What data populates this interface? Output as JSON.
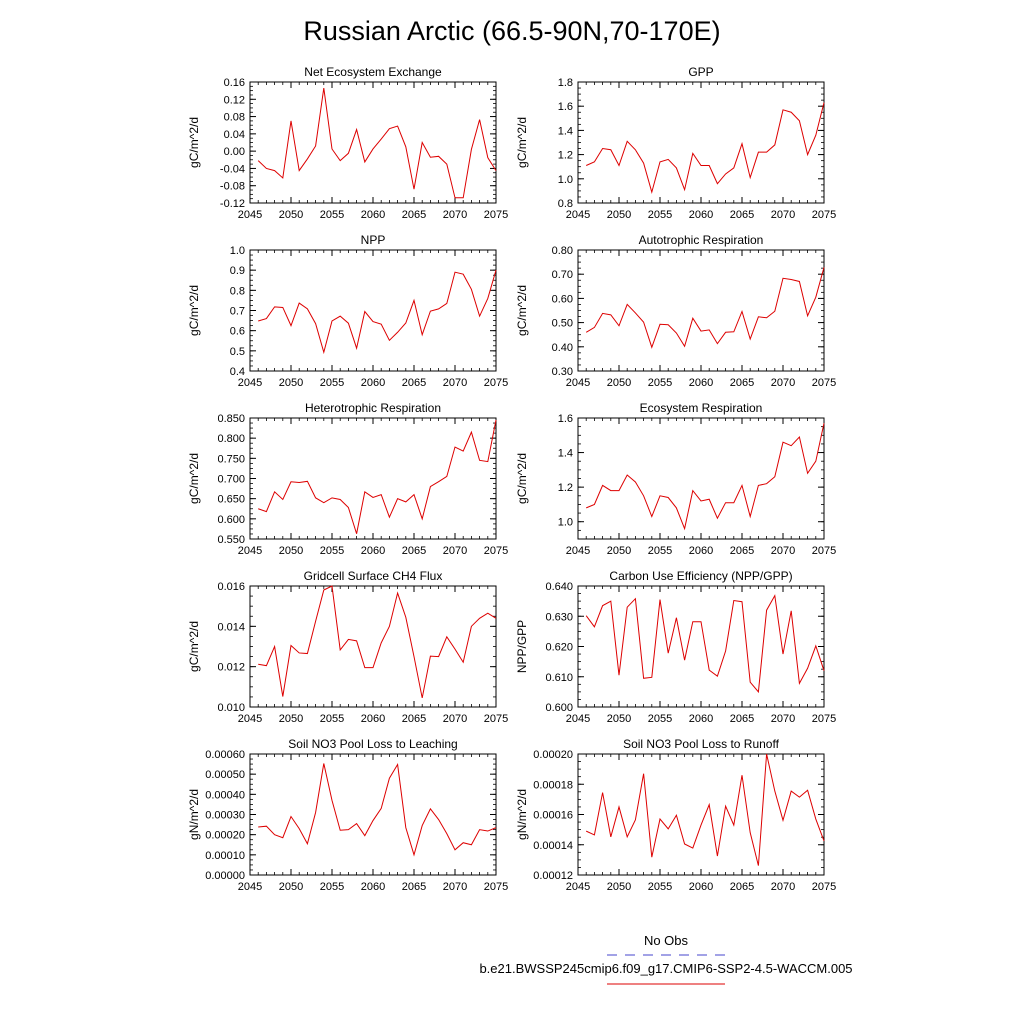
{
  "figure_title": "Russian Arctic (66.5-90N,70-170E)",
  "legend": {
    "obs_label": "No Obs",
    "obs_color": "#4444cc",
    "model_label": "b.e21.BWSSP245cmip6.f09_g17.CMIP6-SSP2-4.5-WACCM.005",
    "model_color": "#dd0000"
  },
  "chart_data": [
    {
      "type": "line",
      "title": "Net Ecosystem Exchange",
      "xlabel": "",
      "ylabel": "gC/m^2/d",
      "xlim": [
        2045,
        2075
      ],
      "ylim": [
        -0.12,
        0.16
      ],
      "xticks": [
        2045,
        2050,
        2055,
        2060,
        2065,
        2070,
        2075
      ],
      "yticks": [
        -0.12,
        -0.08,
        -0.04,
        0.0,
        0.04,
        0.08,
        0.12,
        0.16
      ],
      "ytick_labels": [
        "-0.12",
        "-0.08",
        "-0.04",
        "0.00",
        "0.04",
        "0.08",
        "0.12",
        "0.16"
      ],
      "x": [
        2046,
        2047,
        2048,
        2049,
        2050,
        2051,
        2052,
        2053,
        2054,
        2055,
        2056,
        2057,
        2058,
        2059,
        2060,
        2061,
        2062,
        2063,
        2064,
        2065,
        2066,
        2067,
        2068,
        2069,
        2070,
        2071,
        2072,
        2073,
        2074,
        2075
      ],
      "values": [
        -0.022,
        -0.04,
        -0.045,
        -0.062,
        0.07,
        -0.045,
        -0.018,
        0.012,
        0.146,
        0.005,
        -0.022,
        -0.005,
        0.05,
        -0.025,
        0.005,
        0.028,
        0.052,
        0.058,
        0.01,
        -0.088,
        0.02,
        -0.014,
        -0.012,
        -0.03,
        -0.108,
        -0.108,
        0.004,
        0.073,
        -0.015,
        -0.045
      ]
    },
    {
      "type": "line",
      "title": "GPP",
      "xlabel": "",
      "ylabel": "gC/m^2/d",
      "xlim": [
        2045,
        2075
      ],
      "ylim": [
        0.8,
        1.8
      ],
      "xticks": [
        2045,
        2050,
        2055,
        2060,
        2065,
        2070,
        2075
      ],
      "yticks": [
        0.8,
        1.0,
        1.2,
        1.4,
        1.6,
        1.8
      ],
      "ytick_labels": [
        "0.8",
        "1.0",
        "1.2",
        "1.4",
        "1.6",
        "1.8"
      ],
      "x": [
        2046,
        2047,
        2048,
        2049,
        2050,
        2051,
        2052,
        2053,
        2054,
        2055,
        2056,
        2057,
        2058,
        2059,
        2060,
        2061,
        2062,
        2063,
        2064,
        2065,
        2066,
        2067,
        2068,
        2069,
        2070,
        2071,
        2072,
        2073,
        2074,
        2075
      ],
      "values": [
        1.11,
        1.14,
        1.25,
        1.24,
        1.11,
        1.31,
        1.24,
        1.13,
        0.89,
        1.14,
        1.16,
        1.09,
        0.91,
        1.21,
        1.11,
        1.11,
        0.96,
        1.04,
        1.09,
        1.29,
        1.01,
        1.22,
        1.22,
        1.28,
        1.57,
        1.55,
        1.48,
        1.2,
        1.36,
        1.63
      ]
    },
    {
      "type": "line",
      "title": "NPP",
      "xlabel": "",
      "ylabel": "gC/m^2/d",
      "xlim": [
        2045,
        2075
      ],
      "ylim": [
        0.4,
        1.0
      ],
      "xticks": [
        2045,
        2050,
        2055,
        2060,
        2065,
        2070,
        2075
      ],
      "yticks": [
        0.4,
        0.5,
        0.6,
        0.7,
        0.8,
        0.9,
        1.0
      ],
      "ytick_labels": [
        "0.4",
        "0.5",
        "0.6",
        "0.7",
        "0.8",
        "0.9",
        "1.0"
      ],
      "x": [
        2046,
        2047,
        2048,
        2049,
        2050,
        2051,
        2052,
        2053,
        2054,
        2055,
        2056,
        2057,
        2058,
        2059,
        2060,
        2061,
        2062,
        2063,
        2064,
        2065,
        2066,
        2067,
        2068,
        2069,
        2070,
        2071,
        2072,
        2073,
        2074,
        2075
      ],
      "values": [
        0.648,
        0.66,
        0.718,
        0.715,
        0.625,
        0.737,
        0.708,
        0.635,
        0.493,
        0.648,
        0.672,
        0.637,
        0.513,
        0.695,
        0.645,
        0.632,
        0.552,
        0.592,
        0.638,
        0.75,
        0.58,
        0.697,
        0.708,
        0.735,
        0.89,
        0.88,
        0.805,
        0.672,
        0.76,
        0.9
      ]
    },
    {
      "type": "line",
      "title": "Autotrophic Respiration",
      "xlabel": "",
      "ylabel": "gC/m^2/d",
      "xlim": [
        2045,
        2075
      ],
      "ylim": [
        0.3,
        0.8
      ],
      "xticks": [
        2045,
        2050,
        2055,
        2060,
        2065,
        2070,
        2075
      ],
      "yticks": [
        0.3,
        0.4,
        0.5,
        0.6,
        0.7,
        0.8
      ],
      "ytick_labels": [
        "0.30",
        "0.40",
        "0.50",
        "0.60",
        "0.70",
        "0.80"
      ],
      "x": [
        2046,
        2047,
        2048,
        2049,
        2050,
        2051,
        2052,
        2053,
        2054,
        2055,
        2056,
        2057,
        2058,
        2059,
        2060,
        2061,
        2062,
        2063,
        2064,
        2065,
        2066,
        2067,
        2068,
        2069,
        2070,
        2071,
        2072,
        2073,
        2074,
        2075
      ],
      "values": [
        0.46,
        0.48,
        0.538,
        0.532,
        0.487,
        0.575,
        0.54,
        0.502,
        0.398,
        0.493,
        0.491,
        0.457,
        0.402,
        0.518,
        0.465,
        0.47,
        0.413,
        0.46,
        0.462,
        0.546,
        0.432,
        0.524,
        0.52,
        0.547,
        0.683,
        0.678,
        0.67,
        0.528,
        0.605,
        0.728
      ]
    },
    {
      "type": "line",
      "title": "Heterotrophic Respiration",
      "xlabel": "",
      "ylabel": "gC/m^2/d",
      "xlim": [
        2045,
        2075
      ],
      "ylim": [
        0.55,
        0.85
      ],
      "xticks": [
        2045,
        2050,
        2055,
        2060,
        2065,
        2070,
        2075
      ],
      "yticks": [
        0.55,
        0.6,
        0.65,
        0.7,
        0.75,
        0.8,
        0.85
      ],
      "ytick_labels": [
        "0.550",
        "0.600",
        "0.650",
        "0.700",
        "0.750",
        "0.800",
        "0.850"
      ],
      "x": [
        2046,
        2047,
        2048,
        2049,
        2050,
        2051,
        2052,
        2053,
        2054,
        2055,
        2056,
        2057,
        2058,
        2059,
        2060,
        2061,
        2062,
        2063,
        2064,
        2065,
        2066,
        2067,
        2068,
        2069,
        2070,
        2071,
        2072,
        2073,
        2074,
        2075
      ],
      "values": [
        0.625,
        0.618,
        0.667,
        0.648,
        0.692,
        0.69,
        0.693,
        0.652,
        0.64,
        0.652,
        0.648,
        0.628,
        0.563,
        0.667,
        0.653,
        0.66,
        0.604,
        0.65,
        0.642,
        0.66,
        0.6,
        0.68,
        0.692,
        0.705,
        0.778,
        0.768,
        0.815,
        0.745,
        0.742,
        0.845
      ]
    },
    {
      "type": "line",
      "title": "Ecosystem Respiration",
      "xlabel": "",
      "ylabel": "gC/m^2/d",
      "xlim": [
        2045,
        2075
      ],
      "ylim": [
        0.9,
        1.6
      ],
      "xticks": [
        2045,
        2050,
        2055,
        2060,
        2065,
        2070,
        2075
      ],
      "yticks": [
        1.0,
        1.2,
        1.4,
        1.6
      ],
      "ytick_labels": [
        "1.0",
        "1.2",
        "1.4",
        "1.6"
      ],
      "x": [
        2046,
        2047,
        2048,
        2049,
        2050,
        2051,
        2052,
        2053,
        2054,
        2055,
        2056,
        2057,
        2058,
        2059,
        2060,
        2061,
        2062,
        2063,
        2064,
        2065,
        2066,
        2067,
        2068,
        2069,
        2070,
        2071,
        2072,
        2073,
        2074,
        2075
      ],
      "values": [
        1.08,
        1.1,
        1.21,
        1.18,
        1.18,
        1.27,
        1.23,
        1.15,
        1.03,
        1.15,
        1.14,
        1.08,
        0.96,
        1.18,
        1.12,
        1.13,
        1.02,
        1.11,
        1.11,
        1.21,
        1.03,
        1.21,
        1.22,
        1.26,
        1.46,
        1.44,
        1.49,
        1.28,
        1.35,
        1.57
      ]
    },
    {
      "type": "line",
      "title": "Gridcell Surface CH4 Flux",
      "xlabel": "",
      "ylabel": "gC/m^2/d",
      "xlim": [
        2045,
        2075
      ],
      "ylim": [
        0.01,
        0.016
      ],
      "xticks": [
        2045,
        2050,
        2055,
        2060,
        2065,
        2070,
        2075
      ],
      "yticks": [
        0.01,
        0.012,
        0.014,
        0.016
      ],
      "ytick_labels": [
        "0.010",
        "0.012",
        "0.014",
        "0.016"
      ],
      "x": [
        2046,
        2047,
        2048,
        2049,
        2050,
        2051,
        2052,
        2053,
        2054,
        2055,
        2056,
        2057,
        2058,
        2059,
        2060,
        2061,
        2062,
        2063,
        2064,
        2065,
        2066,
        2067,
        2068,
        2069,
        2070,
        2071,
        2072,
        2073,
        2074,
        2075
      ],
      "values": [
        0.01212,
        0.01205,
        0.013,
        0.01052,
        0.01305,
        0.01268,
        0.01265,
        0.01425,
        0.0158,
        0.016,
        0.01283,
        0.01335,
        0.01328,
        0.01195,
        0.01195,
        0.01318,
        0.014,
        0.01565,
        0.01445,
        0.0125,
        0.01045,
        0.01252,
        0.0125,
        0.01348,
        0.01287,
        0.01222,
        0.014,
        0.0144,
        0.01465,
        0.0144
      ]
    },
    {
      "type": "line",
      "title": "Carbon Use Efficiency (NPP/GPP)",
      "xlabel": "",
      "ylabel": "NPP/GPP",
      "xlim": [
        2045,
        2075
      ],
      "ylim": [
        0.6,
        0.64
      ],
      "xticks": [
        2045,
        2050,
        2055,
        2060,
        2065,
        2070,
        2075
      ],
      "yticks": [
        0.6,
        0.61,
        0.62,
        0.63,
        0.64
      ],
      "ytick_labels": [
        "0.600",
        "0.610",
        "0.620",
        "0.630",
        "0.640"
      ],
      "x": [
        2046,
        2047,
        2048,
        2049,
        2050,
        2051,
        2052,
        2053,
        2054,
        2055,
        2056,
        2057,
        2058,
        2059,
        2060,
        2061,
        2062,
        2063,
        2064,
        2065,
        2066,
        2067,
        2068,
        2069,
        2070,
        2071,
        2072,
        2073,
        2074,
        2075
      ],
      "values": [
        0.6302,
        0.6265,
        0.6335,
        0.635,
        0.6105,
        0.633,
        0.6358,
        0.6095,
        0.6098,
        0.6355,
        0.6178,
        0.6295,
        0.6155,
        0.6282,
        0.6282,
        0.6122,
        0.6102,
        0.6185,
        0.6352,
        0.6348,
        0.6082,
        0.605,
        0.632,
        0.6368,
        0.6175,
        0.6318,
        0.6078,
        0.6128,
        0.6202,
        0.612
      ]
    },
    {
      "type": "line",
      "title": "Soil NO3 Pool Loss to Leaching",
      "xlabel": "",
      "ylabel": "gN/m^2/d",
      "xlim": [
        2045,
        2075
      ],
      "ylim": [
        0.0,
        0.0006
      ],
      "xticks": [
        2045,
        2050,
        2055,
        2060,
        2065,
        2070,
        2075
      ],
      "yticks": [
        0.0,
        0.0001,
        0.0002,
        0.0003,
        0.0004,
        0.0005,
        0.0006
      ],
      "ytick_labels": [
        "0.00000",
        "0.00010",
        "0.00020",
        "0.00030",
        "0.00040",
        "0.00050",
        "0.00060"
      ],
      "x": [
        2046,
        2047,
        2048,
        2049,
        2050,
        2051,
        2052,
        2053,
        2054,
        2055,
        2056,
        2057,
        2058,
        2059,
        2060,
        2061,
        2062,
        2063,
        2064,
        2065,
        2066,
        2067,
        2068,
        2069,
        2070,
        2071,
        2072,
        2073,
        2074,
        2075
      ],
      "values": [
        0.000238,
        0.000242,
        0.0002,
        0.000185,
        0.00029,
        0.00023,
        0.000155,
        0.00031,
        0.000553,
        0.00037,
        0.000222,
        0.000225,
        0.000255,
        0.000195,
        0.00027,
        0.00033,
        0.00048,
        0.000548,
        0.000235,
        0.0001,
        0.000245,
        0.000328,
        0.000275,
        0.000205,
        0.000125,
        0.00016,
        0.00015,
        0.000225,
        0.000218,
        0.000235
      ]
    },
    {
      "type": "line",
      "title": "Soil NO3 Pool Loss to Runoff",
      "xlabel": "",
      "ylabel": "gN/m^2/d",
      "xlim": [
        2045,
        2075
      ],
      "ylim": [
        0.00012,
        0.0002
      ],
      "xticks": [
        2045,
        2050,
        2055,
        2060,
        2065,
        2070,
        2075
      ],
      "yticks": [
        0.00012,
        0.00014,
        0.00016,
        0.00018,
        0.0002
      ],
      "ytick_labels": [
        "0.00012",
        "0.00014",
        "0.00016",
        "0.00018",
        "0.00020"
      ],
      "x": [
        2046,
        2047,
        2048,
        2049,
        2050,
        2051,
        2052,
        2053,
        2054,
        2055,
        2056,
        2057,
        2058,
        2059,
        2060,
        2061,
        2062,
        2063,
        2064,
        2065,
        2066,
        2067,
        2068,
        2069,
        2070,
        2071,
        2072,
        2073,
        2074,
        2075
      ],
      "values": [
        0.000149,
        0.0001465,
        0.0001745,
        0.0001452,
        0.000165,
        0.0001452,
        0.0001565,
        0.000187,
        0.0001318,
        0.000157,
        0.0001505,
        0.0001595,
        0.0001405,
        0.0001378,
        0.000153,
        0.0001665,
        0.0001325,
        0.0001655,
        0.000153,
        0.000186,
        0.000148,
        0.0001262,
        0.0002,
        0.0001755,
        0.0001562,
        0.0001755,
        0.0001715,
        0.000176,
        0.000157,
        0.0001425
      ]
    }
  ]
}
